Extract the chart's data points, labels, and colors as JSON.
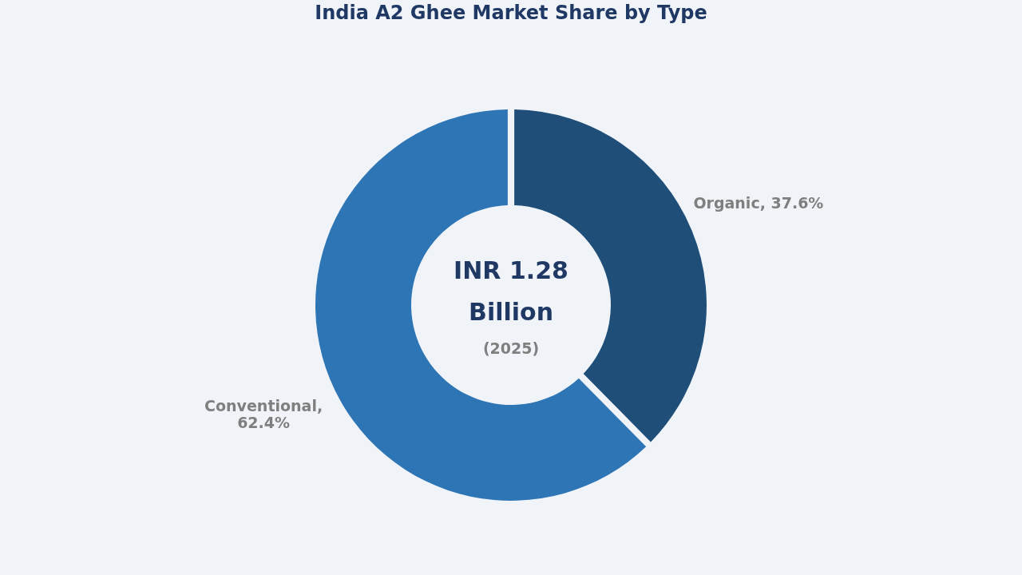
{
  "chart_data": {
    "type": "donut",
    "title": "India A2 Ghee Market Share by Type",
    "categories": [
      "Organic",
      "Conventional"
    ],
    "values": [
      37.6,
      62.4
    ],
    "colors": [
      "#1f4e79",
      "#2e75b6"
    ],
    "value_labels": [
      ", 37.6%",
      ",\n62.4%"
    ],
    "annotations": [
      "INR 1.28",
      "Billion",
      "(2025)"
    ],
    "legend": false
  }
}
